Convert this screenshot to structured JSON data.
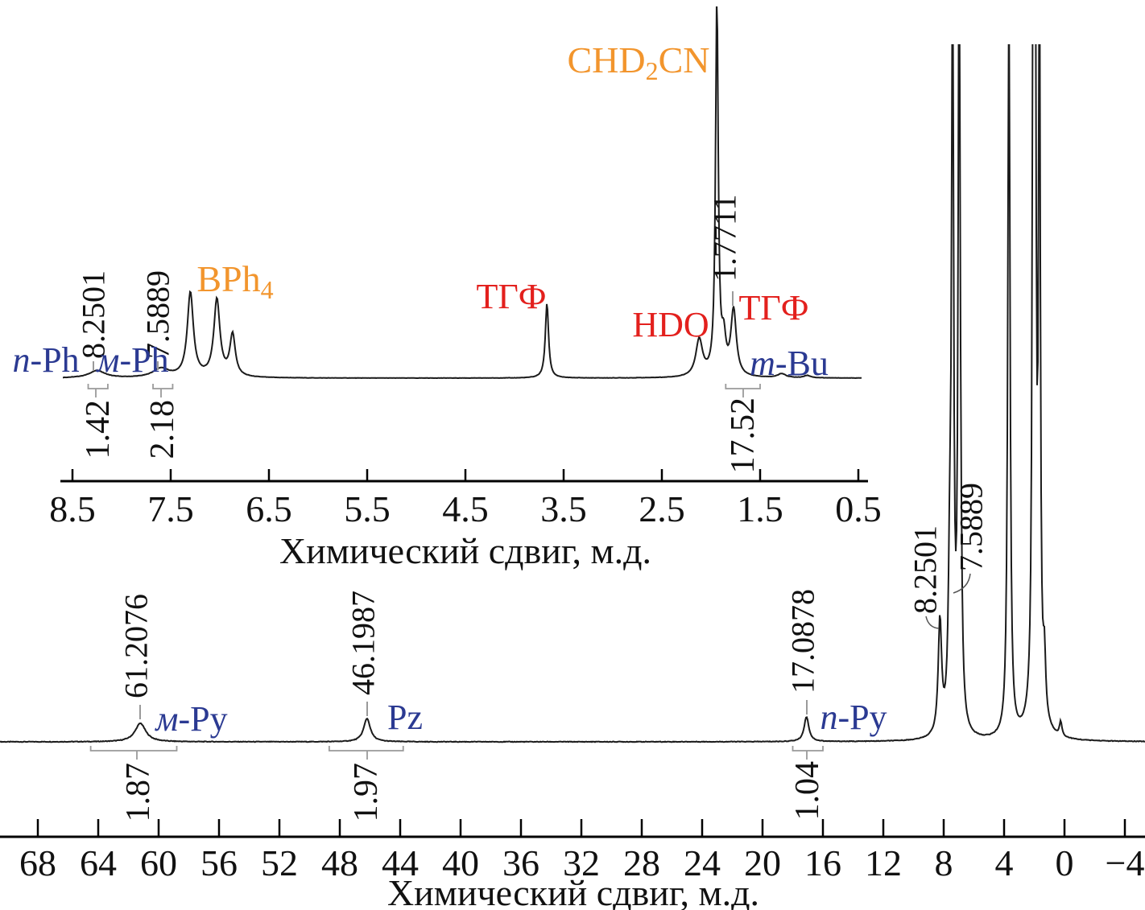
{
  "figure": {
    "background": "#ffffff",
    "colors": {
      "line": "#1b1b1b",
      "axis": "#000000",
      "assignment_blue": "#2b3a92",
      "solvent_red": "#e3201d",
      "formula_orange": "#f2952d",
      "integral_gray": "#9a9a9a",
      "pick_black": "#111111"
    }
  },
  "chart_data": [
    {
      "id": "inset-1h-spectrum",
      "type": "line",
      "xlabel": "Химический сдвиг, м.д.",
      "x_unit": "ppm",
      "x_range": [
        8.62,
        0.4
      ],
      "x_inverted": true,
      "x_ticks": [
        "8.5",
        "7.5",
        "6.5",
        "5.5",
        "4.5",
        "3.5",
        "2.5",
        "1.5",
        "0.5"
      ],
      "x_tick_values": [
        8.5,
        7.5,
        6.5,
        5.5,
        4.5,
        3.5,
        2.5,
        1.5,
        0.5
      ],
      "peaks": [
        {
          "ppm": 8.25,
          "intensity": 9,
          "width": 12,
          "pick": "8.2501",
          "assignment": "n-Ph"
        },
        {
          "ppm": 7.6,
          "intensity": 11,
          "width": 12,
          "pick": "7.5889",
          "assignment": "м-Ph"
        },
        {
          "ppm": 7.3,
          "intensity": 105,
          "width": 4.5,
          "assignment": "BPh4"
        },
        {
          "ppm": 7.03,
          "intensity": 96,
          "width": 4.5,
          "assignment": "BPh4"
        },
        {
          "ppm": 6.87,
          "intensity": 52,
          "width": 4,
          "assignment": "BPh4"
        },
        {
          "ppm": 3.67,
          "intensity": 93,
          "width": 2.4,
          "assignment": "ТГФ"
        },
        {
          "ppm": 2.12,
          "intensity": 46,
          "width": 5,
          "assignment": "HDO"
        },
        {
          "ppm": 1.94,
          "intensity": 470,
          "width": 2,
          "clipped": true,
          "assignment": "CHD2CN"
        },
        {
          "ppm": 1.87,
          "intensity": 40,
          "width": 3,
          "assignment": "ТГФ"
        },
        {
          "ppm": 1.77,
          "intensity": 82,
          "width": 4,
          "pick": "1.7711",
          "assignment": "ТГФ"
        },
        {
          "ppm": 1.28,
          "intensity": 5,
          "width": 6,
          "assignment": "m-Bu"
        },
        {
          "ppm": 1.02,
          "intensity": 3,
          "width": 5,
          "assignment": "m-Bu"
        }
      ],
      "integrals": [
        {
          "value": "1.42",
          "from_ppm": 8.34,
          "to_ppm": 8.14
        },
        {
          "value": "2.18",
          "from_ppm": 7.68,
          "to_ppm": 7.48
        },
        {
          "value": "17.52",
          "from_ppm": 1.85,
          "to_ppm": 1.5
        }
      ]
    },
    {
      "id": "main-wide-spectrum",
      "type": "line",
      "xlabel": "Химический сдвиг, м.д.",
      "x_unit": "ppm",
      "x_range": [
        70.5,
        -5.3
      ],
      "x_inverted": true,
      "x_ticks": [
        "68",
        "64",
        "60",
        "56",
        "52",
        "48",
        "44",
        "40",
        "36",
        "32",
        "28",
        "24",
        "20",
        "16",
        "12",
        "8",
        "4",
        "0",
        "−4"
      ],
      "x_tick_values": [
        68,
        64,
        60,
        56,
        52,
        48,
        44,
        40,
        36,
        32,
        28,
        24,
        20,
        16,
        12,
        8,
        4,
        0,
        -4
      ],
      "peaks": [
        {
          "ppm": 61.2076,
          "intensity": 23,
          "width": 8,
          "pick": "61.2076",
          "assignment": "м-Py"
        },
        {
          "ppm": 46.1987,
          "intensity": 29,
          "width": 5,
          "pick": "46.1987",
          "assignment": "Pz"
        },
        {
          "ppm": 17.0878,
          "intensity": 31,
          "width": 3.5,
          "pick": "17.0878",
          "assignment": "n-Py"
        },
        {
          "ppm": 8.2501,
          "intensity": 142,
          "width": 2.5,
          "pick": "8.2501"
        },
        {
          "ppm": 7.59,
          "intensity": 190,
          "width": 2.2,
          "pick": "7.5889"
        },
        {
          "ppm": 7.41,
          "intensity": 950,
          "width": 1.4,
          "clipped": true
        },
        {
          "ppm": 6.98,
          "intensity": 950,
          "width": 1.4,
          "clipped": true
        },
        {
          "ppm": 6.88,
          "intensity": 125,
          "width": 2
        },
        {
          "ppm": 3.68,
          "intensity": 950,
          "width": 1.6,
          "clipped": true
        },
        {
          "ppm": 2.08,
          "intensity": 950,
          "width": 1.2,
          "clipped": true
        },
        {
          "ppm": 1.93,
          "intensity": 812,
          "width": 1.2
        },
        {
          "ppm": 1.9,
          "intensity": 60,
          "width": 7
        },
        {
          "ppm": 1.66,
          "intensity": 950,
          "width": 1.2,
          "clipped": true
        },
        {
          "ppm": 1.33,
          "intensity": 72,
          "width": 1.8
        },
        {
          "ppm": 0.25,
          "intensity": 18,
          "width": 1.8
        }
      ],
      "integrals": [
        {
          "value": "1.87",
          "from_ppm": 64.5,
          "to_ppm": 58.8
        },
        {
          "value": "1.97",
          "from_ppm": 48.7,
          "to_ppm": 43.8
        },
        {
          "value": "1.04",
          "from_ppm": 18.0,
          "to_ppm": 16.0
        }
      ]
    }
  ],
  "labels": {
    "inset": {
      "n_ph": {
        "it": "n",
        "rest": "-Ph"
      },
      "m_ph": {
        "it": "м",
        "rest": "-Ph"
      },
      "bph4": {
        "main": "BPh",
        "sub": "4"
      },
      "thf1": "ТГФ",
      "hdo": "HDO",
      "chd2cn": {
        "pre": "CHD",
        "sub": "2",
        "post": "CN"
      },
      "thf2": "ТГФ",
      "m_bu": {
        "it": "m",
        "rest": "-Bu"
      }
    },
    "main": {
      "m_py": {
        "it": "м",
        "rest": "-Py"
      },
      "pz": {
        "it": "",
        "rest": "Pz"
      },
      "n_py": {
        "it": "n",
        "rest": "-Py"
      }
    }
  }
}
